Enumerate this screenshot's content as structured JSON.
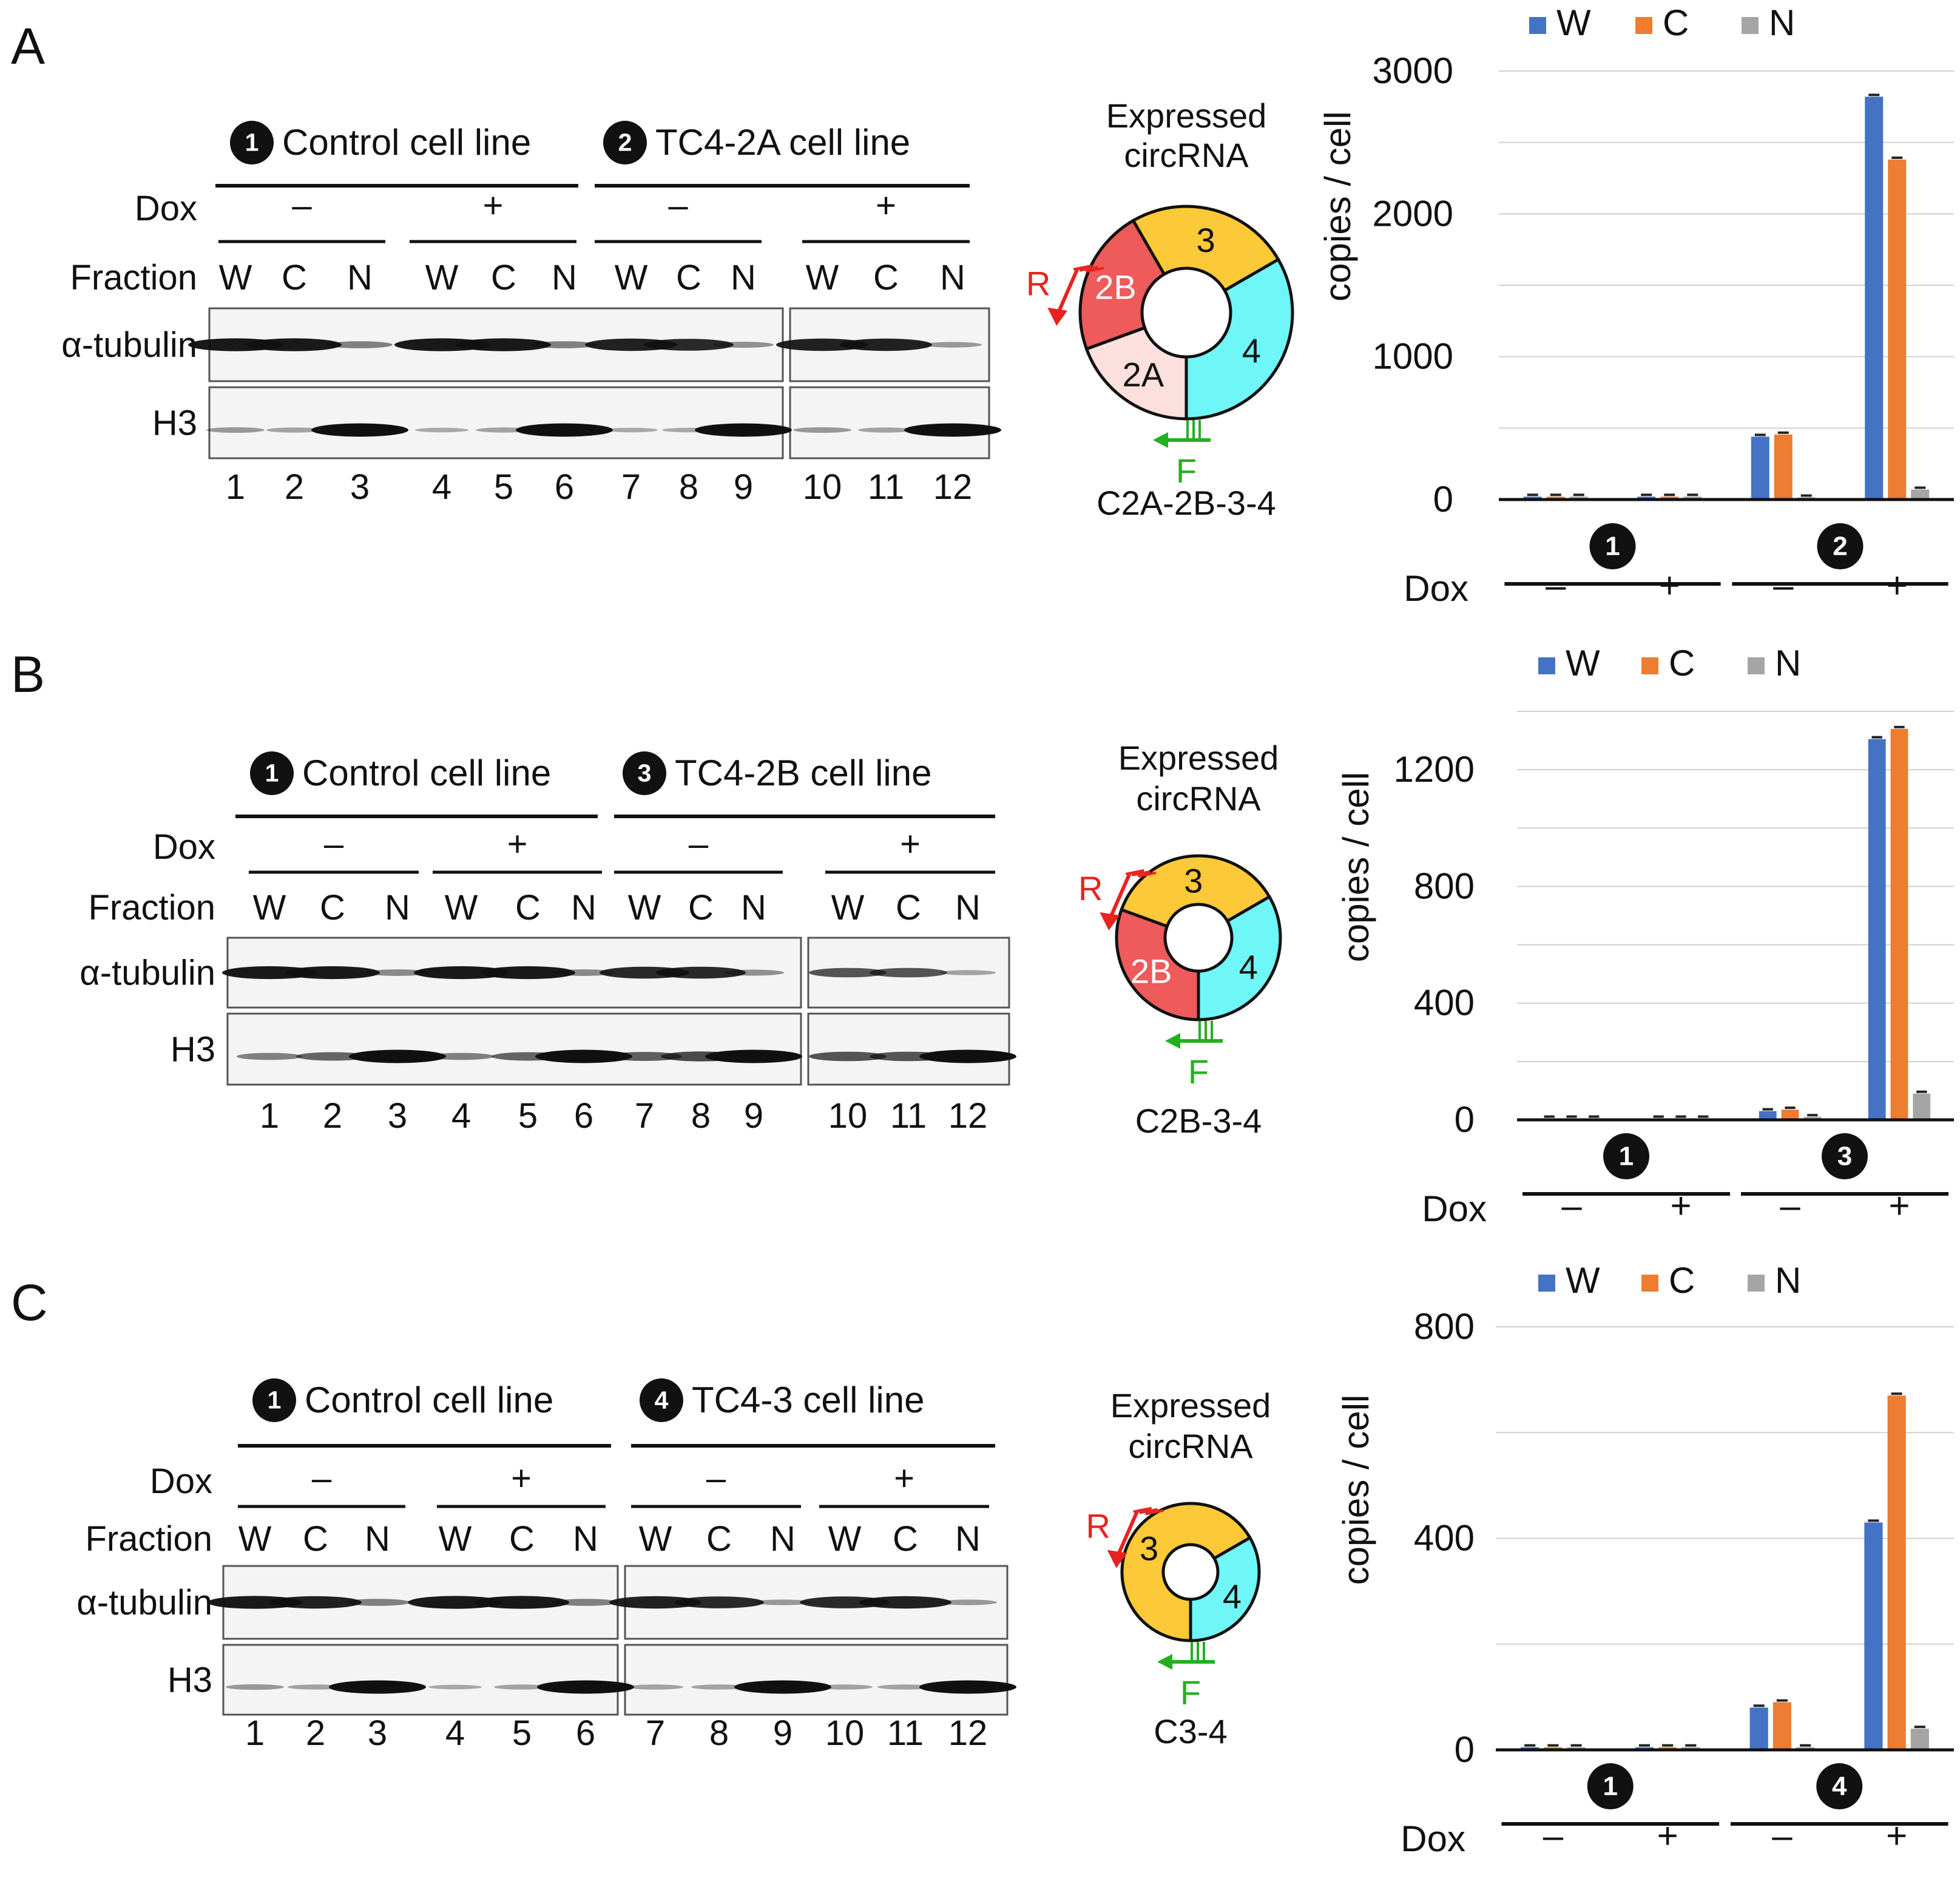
{
  "colors": {
    "W": "#4472C4",
    "C": "#ED7D31",
    "N": "#A5A5A5",
    "red": "#e8231f",
    "green": "#22b022",
    "seg_2A": "#fbe0de",
    "seg_2B": "#ef5a5a",
    "seg_3": "#fcc938",
    "seg_4": "#6ff6f6",
    "blot_bg": "#f4f4f4",
    "band": "#101010"
  },
  "common": {
    "dox_label": "Dox",
    "fraction_label": "Fraction",
    "tubulin_label": "α-tubulin",
    "h3_label": "H3",
    "minus": "–",
    "plus": "+",
    "fractions": [
      "W",
      "C",
      "N"
    ],
    "lanes": [
      "1",
      "2",
      "3",
      "4",
      "5",
      "6",
      "7",
      "8",
      "9",
      "10",
      "11",
      "12"
    ],
    "expressed": "Expressed",
    "circrna": "circRNA",
    "y_axis_label": "copies / cell",
    "legend": [
      "W",
      "C",
      "N"
    ],
    "primer_r": "R",
    "primer_f": "F"
  },
  "panels": [
    {
      "letter": "A",
      "control": {
        "num": "1",
        "label": "Control cell line"
      },
      "test": {
        "num": "2",
        "label": "TC4-2A cell line"
      },
      "blots": {
        "tubulin": [
          0.95,
          0.95,
          0.35,
          0.95,
          0.95,
          0.35,
          0.9,
          0.85,
          0.25,
          0.9,
          0.9,
          0.2
        ],
        "h3": [
          0.2,
          0.15,
          1.0,
          0.1,
          0.15,
          1.0,
          0.1,
          0.1,
          1.0,
          0.2,
          0.15,
          1.0
        ]
      },
      "circ": {
        "name": "C2A-2B-3-4",
        "segments": [
          "2A",
          "2B",
          "3",
          "4"
        ]
      },
      "chart_data": {
        "type": "bar",
        "groups": [
          "1",
          "2"
        ],
        "dox": [
          "–",
          "+",
          "–",
          "+"
        ],
        "series": [
          {
            "name": "W",
            "values": [
              20,
              20,
              440,
              2820
            ]
          },
          {
            "name": "C",
            "values": [
              20,
              20,
              455,
              2380
            ]
          },
          {
            "name": "N",
            "values": [
              20,
              20,
              15,
              70
            ]
          }
        ],
        "ylim": [
          0,
          3000
        ],
        "ticks": [
          0,
          1000,
          2000,
          3000
        ],
        "ylabel": "copies / cell",
        "legend": [
          "W",
          "C",
          "N"
        ]
      }
    },
    {
      "letter": "B",
      "control": {
        "num": "1",
        "label": "Control cell line"
      },
      "test": {
        "num": "3",
        "label": "TC4-2B cell line"
      },
      "blots": {
        "tubulin": [
          0.95,
          0.95,
          0.3,
          0.95,
          0.95,
          0.3,
          0.85,
          0.85,
          0.25,
          0.6,
          0.6,
          0.15
        ],
        "h3": [
          0.35,
          0.5,
          1.0,
          0.35,
          0.5,
          1.0,
          0.55,
          0.65,
          1.0,
          0.6,
          0.6,
          1.0
        ]
      },
      "circ": {
        "name": "C2B-3-4",
        "segments": [
          "2B",
          "3",
          "4"
        ]
      },
      "chart_data": {
        "type": "bar",
        "groups": [
          "1",
          "3"
        ],
        "dox": [
          "–",
          "+",
          "–",
          "+"
        ],
        "series": [
          {
            "name": "W",
            "values": [
              5,
              5,
              30,
              1305
            ]
          },
          {
            "name": "C",
            "values": [
              5,
              5,
              35,
              1340
            ]
          },
          {
            "name": "N",
            "values": [
              5,
              5,
              10,
              90
            ]
          }
        ],
        "ylim": [
          0,
          1400
        ],
        "ticks": [
          0,
          400,
          800,
          1200
        ],
        "ylabel": "copies / cell",
        "legend": [
          "W",
          "C",
          "N"
        ]
      }
    },
    {
      "letter": "C",
      "control": {
        "num": "1",
        "label": "Control cell line"
      },
      "test": {
        "num": "4",
        "label": "TC4-3 cell line"
      },
      "blots": {
        "tubulin": [
          0.95,
          0.9,
          0.35,
          0.95,
          0.95,
          0.35,
          0.9,
          0.85,
          0.2,
          0.85,
          0.9,
          0.2
        ],
        "h3": [
          0.2,
          0.15,
          1.0,
          0.1,
          0.15,
          1.0,
          0.15,
          0.15,
          1.0,
          0.15,
          0.15,
          1.0
        ]
      },
      "circ": {
        "name": "C3-4",
        "segments": [
          "3",
          "4"
        ]
      },
      "chart_data": {
        "type": "bar",
        "groups": [
          "1",
          "4"
        ],
        "dox": [
          "–",
          "+",
          "–",
          "+"
        ],
        "series": [
          {
            "name": "W",
            "values": [
              5,
              5,
              80,
              430
            ]
          },
          {
            "name": "C",
            "values": [
              5,
              5,
              90,
              670
            ]
          },
          {
            "name": "N",
            "values": [
              5,
              5,
              5,
              40
            ]
          }
        ],
        "ylim": [
          0,
          800
        ],
        "ticks": [
          0,
          400,
          800
        ],
        "ylabel": "copies / cell",
        "legend": [
          "W",
          "C",
          "N"
        ]
      }
    }
  ]
}
